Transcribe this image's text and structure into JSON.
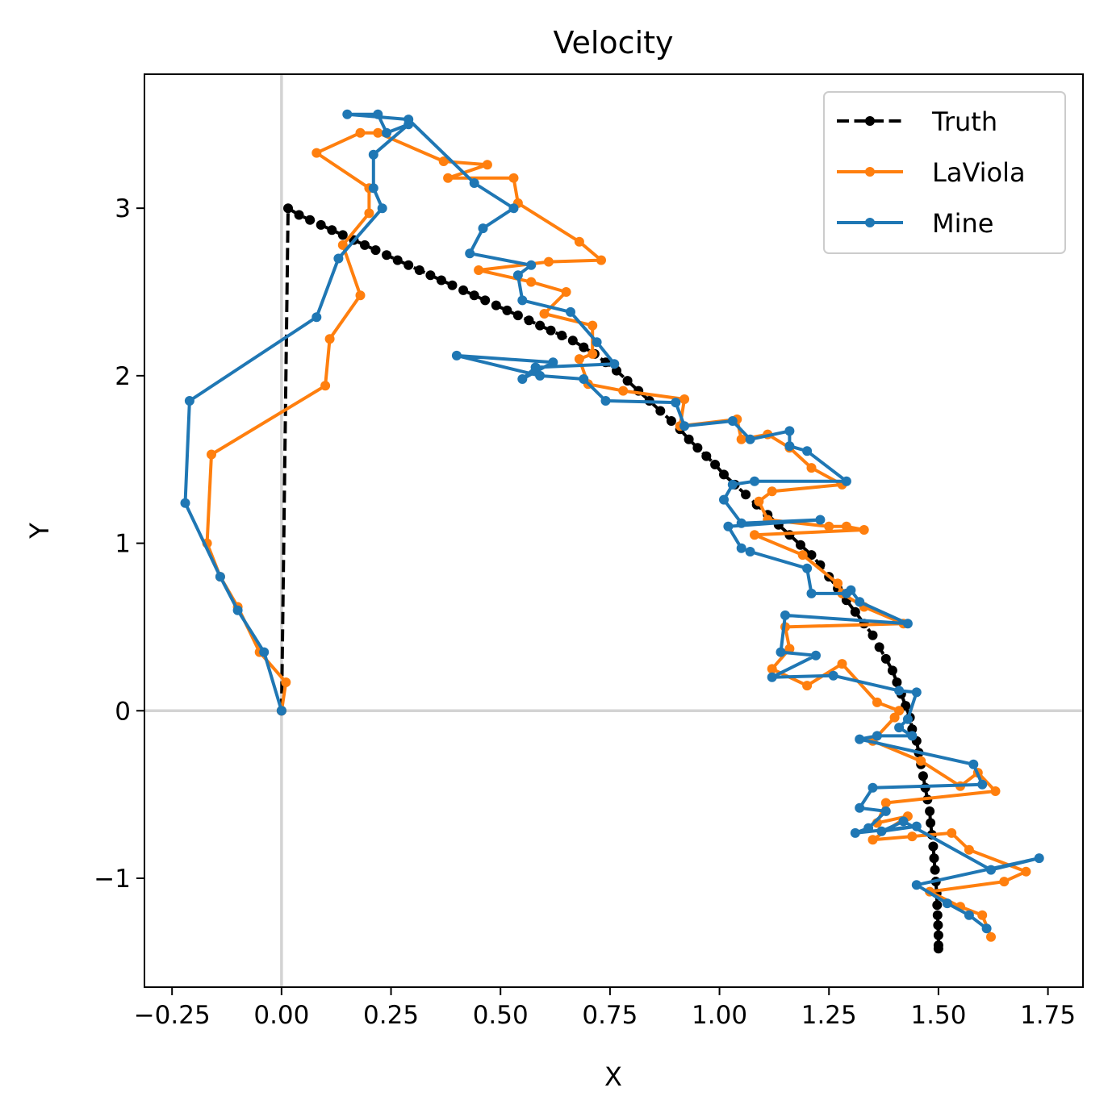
{
  "chart_data": {
    "type": "line",
    "title": "Velocity",
    "xlabel": "X",
    "ylabel": "Y",
    "xlim": [
      -0.313,
      1.83
    ],
    "ylim": [
      -1.65,
      3.8
    ],
    "xticks": [
      -0.25,
      0.0,
      0.25,
      0.5,
      0.75,
      1.0,
      1.25,
      1.5,
      1.75
    ],
    "xtick_labels": [
      "−0.25",
      "0.00",
      "0.25",
      "0.50",
      "0.75",
      "1.00",
      "1.25",
      "1.50",
      "1.75"
    ],
    "yticks": [
      -1,
      0,
      1,
      2,
      3
    ],
    "ytick_labels": [
      "−1",
      "0",
      "1",
      "2",
      "3"
    ],
    "reference_lines": {
      "x": 0,
      "y": 0,
      "color": "#d3d3d3"
    },
    "legend_position": "top-right",
    "series": [
      {
        "name": "Truth",
        "color": "#000000",
        "style": "dashed",
        "points": [
          [
            0.0,
            0.0
          ],
          [
            0.015,
            3.0
          ],
          [
            0.04,
            2.96
          ],
          [
            0.065,
            2.93
          ],
          [
            0.09,
            2.9
          ],
          [
            0.115,
            2.87
          ],
          [
            0.14,
            2.84
          ],
          [
            0.165,
            2.81
          ],
          [
            0.19,
            2.78
          ],
          [
            0.215,
            2.75
          ],
          [
            0.24,
            2.72
          ],
          [
            0.265,
            2.69
          ],
          [
            0.29,
            2.66
          ],
          [
            0.315,
            2.63
          ],
          [
            0.34,
            2.6
          ],
          [
            0.365,
            2.57
          ],
          [
            0.39,
            2.54
          ],
          [
            0.415,
            2.51
          ],
          [
            0.44,
            2.48
          ],
          [
            0.465,
            2.45
          ],
          [
            0.49,
            2.42
          ],
          [
            0.515,
            2.39
          ],
          [
            0.54,
            2.36
          ],
          [
            0.565,
            2.33
          ],
          [
            0.59,
            2.3
          ],
          [
            0.615,
            2.27
          ],
          [
            0.64,
            2.24
          ],
          [
            0.665,
            2.21
          ],
          [
            0.69,
            2.17
          ],
          [
            0.715,
            2.13
          ],
          [
            0.74,
            2.08
          ],
          [
            0.765,
            2.03
          ],
          [
            0.79,
            1.97
          ],
          [
            0.815,
            1.91
          ],
          [
            0.84,
            1.85
          ],
          [
            0.865,
            1.79
          ],
          [
            0.89,
            1.73
          ],
          [
            0.91,
            1.68
          ],
          [
            0.93,
            1.62
          ],
          [
            0.95,
            1.57
          ],
          [
            0.97,
            1.52
          ],
          [
            0.99,
            1.47
          ],
          [
            1.01,
            1.41
          ],
          [
            1.035,
            1.35
          ],
          [
            1.06,
            1.29
          ],
          [
            1.085,
            1.23
          ],
          [
            1.11,
            1.17
          ],
          [
            1.135,
            1.11
          ],
          [
            1.16,
            1.05
          ],
          [
            1.185,
            0.99
          ],
          [
            1.21,
            0.93
          ],
          [
            1.23,
            0.87
          ],
          [
            1.25,
            0.8
          ],
          [
            1.27,
            0.73
          ],
          [
            1.29,
            0.66
          ],
          [
            1.31,
            0.59
          ],
          [
            1.33,
            0.52
          ],
          [
            1.35,
            0.45
          ],
          [
            1.365,
            0.38
          ],
          [
            1.38,
            0.31
          ],
          [
            1.395,
            0.24
          ],
          [
            1.405,
            0.17
          ],
          [
            1.415,
            0.1
          ],
          [
            1.425,
            0.03
          ],
          [
            1.435,
            -0.04
          ],
          [
            1.44,
            -0.11
          ],
          [
            1.45,
            -0.18
          ],
          [
            1.455,
            -0.25
          ],
          [
            1.46,
            -0.32
          ],
          [
            1.465,
            -0.39
          ],
          [
            1.47,
            -0.46
          ],
          [
            1.475,
            -0.53
          ],
          [
            1.48,
            -0.6
          ],
          [
            1.482,
            -0.67
          ],
          [
            1.485,
            -0.74
          ],
          [
            1.488,
            -0.81
          ],
          [
            1.49,
            -0.88
          ],
          [
            1.492,
            -0.95
          ],
          [
            1.494,
            -1.02
          ],
          [
            1.496,
            -1.09
          ],
          [
            1.497,
            -1.16
          ],
          [
            1.498,
            -1.22
          ],
          [
            1.499,
            -1.28
          ],
          [
            1.5,
            -1.34
          ],
          [
            1.5,
            -1.4
          ],
          [
            1.5,
            -1.42
          ]
        ]
      },
      {
        "name": "LaViola",
        "color": "#ff7f0e",
        "style": "solid",
        "points": [
          [
            0.0,
            0.0
          ],
          [
            0.01,
            0.17
          ],
          [
            -0.05,
            0.35
          ],
          [
            -0.1,
            0.62
          ],
          [
            -0.14,
            0.8
          ],
          [
            -0.17,
            1.0
          ],
          [
            -0.16,
            1.53
          ],
          [
            0.1,
            1.94
          ],
          [
            0.11,
            2.22
          ],
          [
            0.18,
            2.48
          ],
          [
            0.14,
            2.78
          ],
          [
            0.2,
            2.97
          ],
          [
            0.2,
            3.12
          ],
          [
            0.08,
            3.33
          ],
          [
            0.18,
            3.45
          ],
          [
            0.22,
            3.45
          ],
          [
            0.37,
            3.28
          ],
          [
            0.47,
            3.26
          ],
          [
            0.38,
            3.18
          ],
          [
            0.53,
            3.18
          ],
          [
            0.54,
            3.03
          ],
          [
            0.68,
            2.8
          ],
          [
            0.73,
            2.69
          ],
          [
            0.61,
            2.68
          ],
          [
            0.45,
            2.63
          ],
          [
            0.57,
            2.56
          ],
          [
            0.65,
            2.5
          ],
          [
            0.6,
            2.37
          ],
          [
            0.71,
            2.3
          ],
          [
            0.71,
            2.13
          ],
          [
            0.68,
            2.1
          ],
          [
            0.7,
            1.95
          ],
          [
            0.78,
            1.91
          ],
          [
            0.92,
            1.86
          ],
          [
            0.91,
            1.7
          ],
          [
            1.04,
            1.74
          ],
          [
            1.05,
            1.62
          ],
          [
            1.11,
            1.65
          ],
          [
            1.16,
            1.57
          ],
          [
            1.21,
            1.45
          ],
          [
            1.28,
            1.35
          ],
          [
            1.12,
            1.31
          ],
          [
            1.09,
            1.25
          ],
          [
            1.11,
            1.14
          ],
          [
            1.25,
            1.1
          ],
          [
            1.29,
            1.1
          ],
          [
            1.33,
            1.08
          ],
          [
            1.08,
            1.05
          ],
          [
            1.19,
            0.93
          ],
          [
            1.27,
            0.76
          ],
          [
            1.28,
            0.7
          ],
          [
            1.33,
            0.62
          ],
          [
            1.42,
            0.52
          ],
          [
            1.15,
            0.5
          ],
          [
            1.16,
            0.37
          ],
          [
            1.12,
            0.25
          ],
          [
            1.2,
            0.15
          ],
          [
            1.28,
            0.28
          ],
          [
            1.36,
            0.05
          ],
          [
            1.41,
            0.0
          ],
          [
            1.4,
            -0.04
          ],
          [
            1.35,
            -0.18
          ],
          [
            1.46,
            -0.3
          ],
          [
            1.55,
            -0.45
          ],
          [
            1.59,
            -0.37
          ],
          [
            1.63,
            -0.48
          ],
          [
            1.38,
            -0.55
          ],
          [
            1.36,
            -0.67
          ],
          [
            1.43,
            -0.63
          ],
          [
            1.35,
            -0.77
          ],
          [
            1.44,
            -0.75
          ],
          [
            1.53,
            -0.73
          ],
          [
            1.57,
            -0.83
          ],
          [
            1.7,
            -0.96
          ],
          [
            1.65,
            -1.02
          ],
          [
            1.48,
            -1.08
          ],
          [
            1.55,
            -1.17
          ],
          [
            1.6,
            -1.22
          ],
          [
            1.62,
            -1.35
          ]
        ]
      },
      {
        "name": "Mine",
        "color": "#1f77b4",
        "style": "solid",
        "points": [
          [
            0.0,
            0.0
          ],
          [
            -0.04,
            0.35
          ],
          [
            -0.1,
            0.6
          ],
          [
            -0.14,
            0.8
          ],
          [
            -0.22,
            1.24
          ],
          [
            -0.21,
            1.85
          ],
          [
            0.08,
            2.35
          ],
          [
            0.13,
            2.7
          ],
          [
            0.23,
            3.0
          ],
          [
            0.21,
            3.12
          ],
          [
            0.21,
            3.32
          ],
          [
            0.29,
            3.5
          ],
          [
            0.24,
            3.45
          ],
          [
            0.22,
            3.56
          ],
          [
            0.15,
            3.56
          ],
          [
            0.29,
            3.53
          ],
          [
            0.44,
            3.15
          ],
          [
            0.53,
            3.0
          ],
          [
            0.46,
            2.88
          ],
          [
            0.43,
            2.73
          ],
          [
            0.57,
            2.66
          ],
          [
            0.54,
            2.6
          ],
          [
            0.55,
            2.45
          ],
          [
            0.66,
            2.38
          ],
          [
            0.72,
            2.2
          ],
          [
            0.76,
            2.07
          ],
          [
            0.58,
            2.05
          ],
          [
            0.55,
            1.98
          ],
          [
            0.62,
            2.08
          ],
          [
            0.4,
            2.12
          ],
          [
            0.59,
            2.0
          ],
          [
            0.69,
            1.98
          ],
          [
            0.74,
            1.85
          ],
          [
            0.9,
            1.84
          ],
          [
            0.92,
            1.7
          ],
          [
            1.03,
            1.73
          ],
          [
            1.07,
            1.62
          ],
          [
            1.16,
            1.67
          ],
          [
            1.16,
            1.58
          ],
          [
            1.2,
            1.55
          ],
          [
            1.29,
            1.37
          ],
          [
            1.08,
            1.37
          ],
          [
            1.03,
            1.35
          ],
          [
            1.01,
            1.26
          ],
          [
            1.05,
            1.12
          ],
          [
            1.23,
            1.14
          ],
          [
            1.02,
            1.1
          ],
          [
            1.05,
            0.97
          ],
          [
            1.07,
            0.95
          ],
          [
            1.2,
            0.85
          ],
          [
            1.21,
            0.7
          ],
          [
            1.29,
            0.7
          ],
          [
            1.3,
            0.72
          ],
          [
            1.32,
            0.65
          ],
          [
            1.43,
            0.52
          ],
          [
            1.15,
            0.57
          ],
          [
            1.14,
            0.35
          ],
          [
            1.22,
            0.33
          ],
          [
            1.12,
            0.2
          ],
          [
            1.26,
            0.21
          ],
          [
            1.41,
            0.12
          ],
          [
            1.45,
            0.11
          ],
          [
            1.43,
            -0.05
          ],
          [
            1.41,
            -0.1
          ],
          [
            1.44,
            -0.15
          ],
          [
            1.36,
            -0.15
          ],
          [
            1.32,
            -0.17
          ],
          [
            1.58,
            -0.32
          ],
          [
            1.6,
            -0.44
          ],
          [
            1.35,
            -0.46
          ],
          [
            1.32,
            -0.58
          ],
          [
            1.38,
            -0.6
          ],
          [
            1.34,
            -0.7
          ],
          [
            1.31,
            -0.73
          ],
          [
            1.45,
            -0.69
          ],
          [
            1.37,
            -0.72
          ],
          [
            1.42,
            -0.66
          ],
          [
            1.62,
            -0.95
          ],
          [
            1.73,
            -0.88
          ],
          [
            1.45,
            -1.04
          ],
          [
            1.52,
            -1.15
          ],
          [
            1.57,
            -1.22
          ],
          [
            1.61,
            -1.3
          ]
        ]
      }
    ]
  }
}
